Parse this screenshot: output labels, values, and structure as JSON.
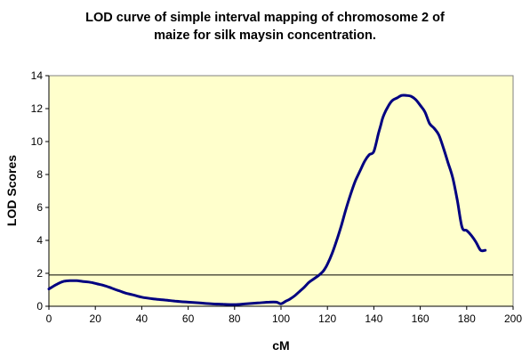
{
  "chart_data": {
    "type": "line",
    "title_line1": "LOD curve of simple interval mapping of chromosome 2 of",
    "title_line2": "maize for silk maysin concentration.",
    "xlabel": "cM",
    "ylabel": "LOD Scores",
    "xlim": [
      0,
      200
    ],
    "ylim": [
      0,
      14
    ],
    "x_ticks": [
      0,
      20,
      40,
      60,
      80,
      100,
      120,
      140,
      160,
      180,
      200
    ],
    "y_ticks": [
      0,
      2,
      4,
      6,
      8,
      10,
      12,
      14
    ],
    "threshold": 1.9,
    "plot_background": "#ffffcc",
    "line_color": "#000080",
    "grid": false,
    "legend": "none",
    "series": [
      {
        "x": [
          0,
          3,
          6,
          9,
          12,
          15,
          18,
          21,
          24,
          27,
          30,
          33,
          36,
          40,
          45,
          50,
          55,
          60,
          65,
          70,
          75,
          80,
          85,
          90,
          95,
          98,
          100,
          102,
          104,
          106,
          108,
          110,
          112,
          114,
          116,
          118,
          119,
          120,
          122,
          124,
          126,
          128,
          130,
          132,
          134,
          136,
          138,
          140,
          142,
          143,
          144,
          146,
          148,
          150,
          152,
          154,
          156,
          158,
          160,
          162,
          164,
          166,
          168,
          170,
          172,
          174,
          176,
          178,
          180,
          182,
          184,
          186,
          188
        ],
        "y": [
          1.05,
          1.3,
          1.5,
          1.55,
          1.55,
          1.5,
          1.45,
          1.35,
          1.25,
          1.1,
          0.95,
          0.8,
          0.7,
          0.55,
          0.45,
          0.38,
          0.3,
          0.25,
          0.2,
          0.15,
          0.12,
          0.1,
          0.15,
          0.2,
          0.25,
          0.25,
          0.15,
          0.3,
          0.45,
          0.65,
          0.9,
          1.15,
          1.45,
          1.65,
          1.85,
          2.1,
          2.3,
          2.55,
          3.2,
          4.0,
          4.9,
          5.9,
          6.8,
          7.6,
          8.2,
          8.8,
          9.2,
          9.4,
          10.5,
          11.0,
          11.5,
          12.1,
          12.5,
          12.65,
          12.8,
          12.8,
          12.75,
          12.55,
          12.2,
          11.8,
          11.1,
          10.8,
          10.4,
          9.6,
          8.7,
          7.8,
          6.4,
          4.8,
          4.6,
          4.3,
          3.9,
          3.4,
          3.4
        ]
      }
    ]
  }
}
